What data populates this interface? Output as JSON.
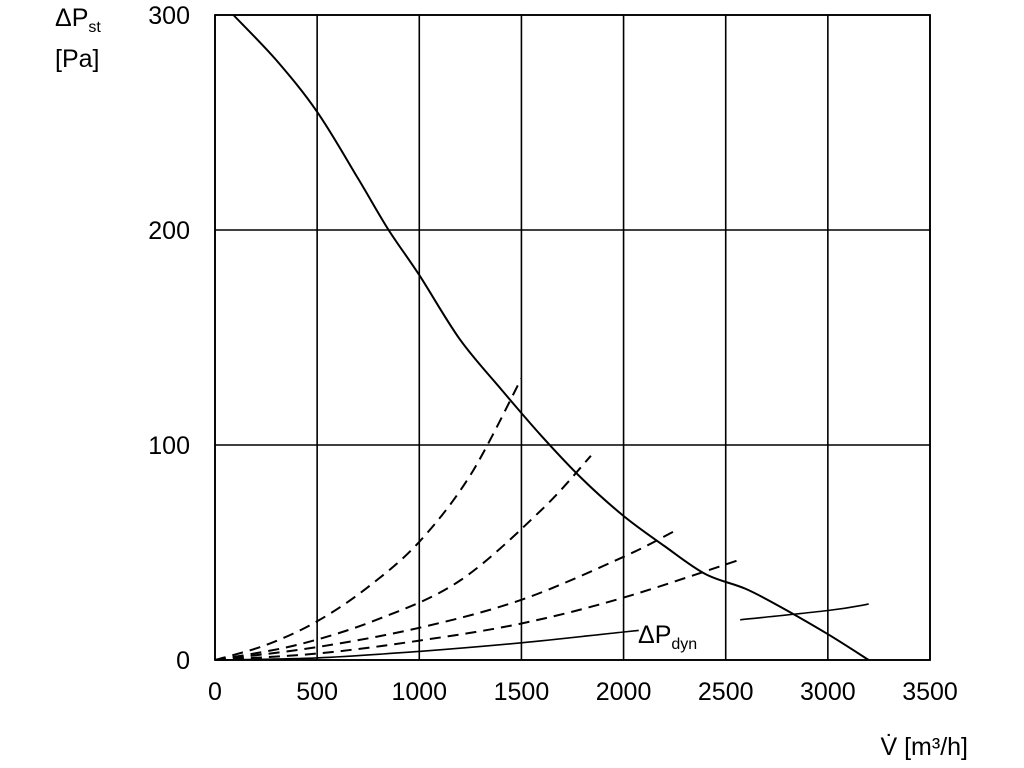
{
  "chart_data": {
    "type": "line",
    "xlabel": "V̇ [m³/h]",
    "ylabel": "ΔP",
    "ylabel_sub": "st",
    "ylabel_unit": "[Pa]",
    "xlim": [
      0,
      3500
    ],
    "ylim": [
      0,
      300
    ],
    "grid": true,
    "x_ticks": [
      "0",
      "500",
      "1000",
      "1500",
      "2000",
      "2500",
      "3000",
      "3500"
    ],
    "y_ticks": [
      "0",
      "100",
      "200",
      "300"
    ],
    "annotation": {
      "text": "ΔP",
      "sub": "dyn"
    },
    "series": [
      {
        "style": "solid",
        "role": "fan-curve",
        "x": [
          90,
          300,
          500,
          700,
          850,
          1000,
          1200,
          1400,
          1600,
          1800,
          2000,
          2200,
          2400,
          2600,
          2800,
          3000,
          3200
        ],
        "y": [
          300,
          279,
          255,
          224,
          200,
          179,
          149,
          126,
          104,
          84,
          67,
          53,
          40,
          33,
          23,
          12,
          0
        ]
      },
      {
        "style": "solid",
        "role": "dynamic-pressure",
        "x": [
          0,
          500,
          1000,
          1500,
          2000,
          2500,
          3000,
          3200
        ],
        "y": [
          0,
          1,
          4,
          8,
          13,
          18,
          23,
          26
        ]
      },
      {
        "style": "dashed",
        "role": "system-curve",
        "x": [
          0,
          250,
          500,
          750,
          1000,
          1250,
          1500
        ],
        "y": [
          0,
          7,
          18,
          34,
          55,
          86,
          131
        ]
      },
      {
        "style": "dashed",
        "role": "system-curve",
        "x": [
          0,
          400,
          800,
          1200,
          1600,
          1840
        ],
        "y": [
          0,
          7,
          19,
          37,
          70,
          95
        ]
      },
      {
        "style": "dashed",
        "role": "system-curve",
        "x": [
          0,
          500,
          1000,
          1500,
          2000,
          2250
        ],
        "y": [
          0,
          6,
          15,
          28,
          48,
          60
        ]
      },
      {
        "style": "dashed",
        "role": "system-curve",
        "x": [
          0,
          500,
          1000,
          1500,
          2000,
          2580
        ],
        "y": [
          0,
          3,
          9,
          17,
          29,
          47
        ]
      }
    ]
  }
}
